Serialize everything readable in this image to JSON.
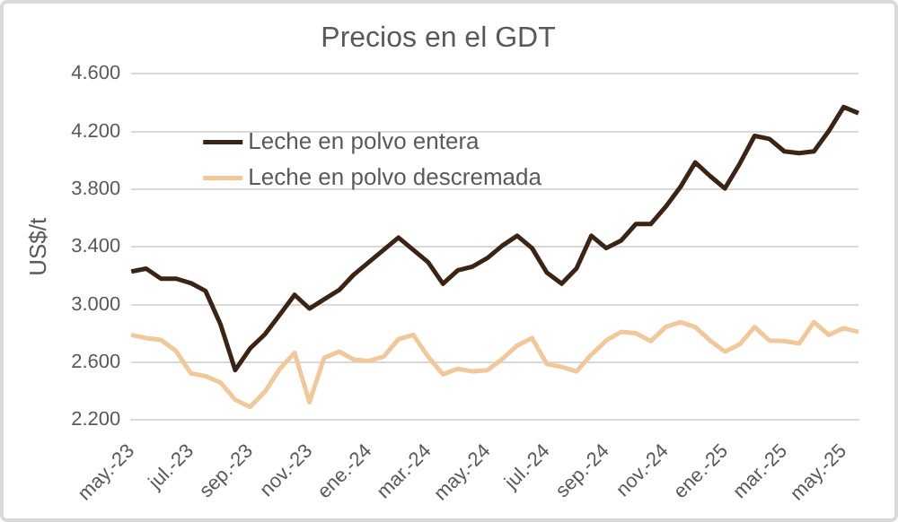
{
  "chart_data": {
    "type": "line",
    "title": "Precios en el GDT",
    "ylabel": "US$/t",
    "categories": [
      "may.-23",
      null,
      null,
      null,
      "jul.-23",
      null,
      null,
      null,
      "sep.-23",
      null,
      null,
      null,
      "nov.-23",
      null,
      null,
      null,
      "ene.-24",
      null,
      null,
      null,
      "mar.-24",
      null,
      null,
      null,
      "may.-24",
      null,
      null,
      null,
      "jul.-24",
      null,
      null,
      null,
      "sep.-24",
      null,
      null,
      null,
      "nov.-24",
      null,
      null,
      null,
      "ene.-25",
      null,
      null,
      null,
      "mar.-25",
      null,
      null,
      null,
      "may.-25",
      null
    ],
    "series": [
      {
        "name": "Leche en polvo entera",
        "color": "#3a2416",
        "values": [
          3230,
          3250,
          3180,
          3180,
          3150,
          3095,
          2866,
          2546,
          2696,
          2794,
          2930,
          3068,
          2973,
          3037,
          3101,
          3209,
          3294,
          3380,
          3465,
          3380,
          3294,
          3145,
          3238,
          3264,
          3324,
          3409,
          3478,
          3392,
          3222,
          3145,
          3251,
          3478,
          3392,
          3444,
          3559,
          3559,
          3678,
          3815,
          3986,
          3892,
          3806,
          3978,
          4170,
          4149,
          4063,
          4050,
          4063,
          4204,
          4370,
          4328
        ]
      },
      {
        "name": "Leche en polvo descremada",
        "color": "#f0c89a",
        "values": [
          2790,
          2768,
          2755,
          2680,
          2524,
          2504,
          2460,
          2341,
          2290,
          2396,
          2555,
          2666,
          2324,
          2632,
          2674,
          2619,
          2610,
          2640,
          2760,
          2790,
          2640,
          2517,
          2555,
          2537,
          2546,
          2623,
          2717,
          2768,
          2589,
          2568,
          2537,
          2653,
          2751,
          2811,
          2802,
          2747,
          2845,
          2879,
          2845,
          2751,
          2674,
          2725,
          2845,
          2751,
          2747,
          2730,
          2879,
          2790,
          2837,
          2811
        ]
      }
    ],
    "ylim": [
      2200,
      4600
    ],
    "yticks": [
      {
        "value": 2200,
        "label": "2.200"
      },
      {
        "value": 2600,
        "label": "2.600"
      },
      {
        "value": 3000,
        "label": "3.000"
      },
      {
        "value": 3400,
        "label": "3.400"
      },
      {
        "value": 3800,
        "label": "3.800"
      },
      {
        "value": 4200,
        "label": "4.200"
      },
      {
        "value": 4600,
        "label": "4.600"
      }
    ],
    "grid": "y",
    "legend": "top left",
    "marker": "none",
    "line_style": "solid"
  }
}
